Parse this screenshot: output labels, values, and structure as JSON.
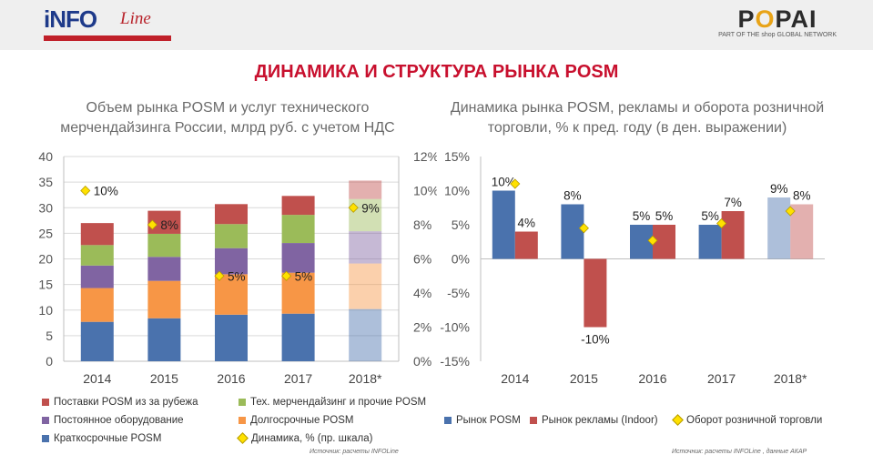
{
  "header": {
    "logo_left_brand": "iNFO",
    "logo_left_line": "Line",
    "logo_right_brand_a": "P",
    "logo_right_brand_o": "O",
    "logo_right_brand_b": "PAI",
    "logo_right_sub": "PART OF THE shop GLOBAL NETWORK"
  },
  "page_title": "ДИНАМИКА И СТРУКТУРА РЫНКА POSM",
  "left": {
    "subtitle_line1": "Объем рынка POSM и услуг технического",
    "subtitle_line2": "мерчендайзинга России, млрд руб. с учетом НДС",
    "source": "Источник: расчеты INFOLine"
  },
  "right": {
    "subtitle_line1": "Динамика рынка POSM, рекламы и оборота розничной",
    "subtitle_line2": "торговли, % к пред. году (в ден. выражении)",
    "source": "Источник: расчеты INFOLine , данные АКАР"
  },
  "chart_data": [
    {
      "type": "bar",
      "stacked": true,
      "categories": [
        "2014",
        "2015",
        "2016",
        "2017",
        "2018*"
      ],
      "ylim": [
        0,
        40
      ],
      "yticks": [
        "0",
        "5",
        "10",
        "15",
        "20",
        "25",
        "30",
        "35",
        "40"
      ],
      "y2lim": [
        0,
        12
      ],
      "y2ticks": [
        "0%",
        "2%",
        "4%",
        "6%",
        "8%",
        "10%",
        "12%"
      ],
      "series": [
        {
          "name": "Краткосрочные POSM",
          "color": "#4a72ad",
          "values": [
            7.7,
            8.4,
            9.1,
            9.3,
            10.2
          ]
        },
        {
          "name": "Долгосрочные POSM",
          "color": "#f79646",
          "values": [
            6.6,
            7.3,
            7.9,
            8.0,
            8.9
          ]
        },
        {
          "name": "Постоянное оборудование",
          "color": "#8064a2",
          "values": [
            4.4,
            4.7,
            5.1,
            5.8,
            6.3
          ]
        },
        {
          "name": "Тех. мерчендайзинг и прочие POSM",
          "color": "#9bbb59",
          "values": [
            4.0,
            4.5,
            4.7,
            5.5,
            6.3
          ]
        },
        {
          "name": "Поставки POSM из за рубежа",
          "color": "#c0504d",
          "values": [
            4.3,
            4.5,
            3.9,
            3.7,
            3.6
          ]
        }
      ],
      "line": {
        "name": "Динамика, % (пр. шкала)",
        "values": [
          10,
          8,
          5,
          5,
          9
        ],
        "labels": [
          "10%",
          "8%",
          "5%",
          "5%",
          "9%"
        ]
      },
      "forecast_index": 4
    },
    {
      "type": "bar",
      "categories": [
        "2014",
        "2015",
        "2016",
        "2017",
        "2018*"
      ],
      "ylim": [
        -15,
        15
      ],
      "yticks": [
        "-15%",
        "-10%",
        "-5%",
        "0%",
        "5%",
        "10%",
        "15%"
      ],
      "series": [
        {
          "name": "Рынок POSM",
          "color": "#4a72ad",
          "values": [
            10,
            8,
            5,
            5,
            9
          ],
          "labels": [
            "10%",
            "8%",
            "5%",
            "5%",
            "9%"
          ]
        },
        {
          "name": "Рынок рекламы (Indoor)",
          "color": "#c0504d",
          "values": [
            4,
            -10,
            5,
            7,
            8
          ],
          "labels": [
            "4%",
            "-10%",
            "5%",
            "7%",
            "8%"
          ]
        }
      ],
      "line": {
        "name": "Оборот розничной торговли",
        "values": [
          11,
          4.5,
          2.7,
          5.2,
          7
        ]
      },
      "forecast_index": 4
    }
  ]
}
